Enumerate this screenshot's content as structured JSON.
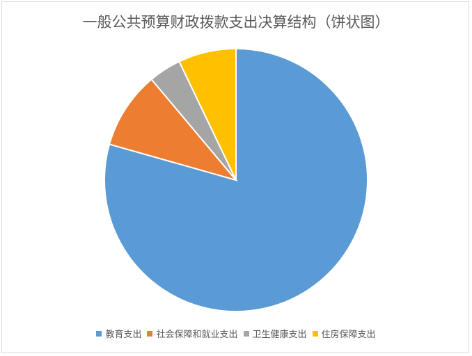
{
  "chart_data": {
    "type": "pie",
    "title": "一般公共预算财政拨款支出决算结构（饼状图）",
    "categories": [
      "教育支出",
      "社会保障和就业支出",
      "卫生健康支出",
      "住房保障支出"
    ],
    "values": [
      79.4,
      9.5,
      4.0,
      7.1
    ],
    "unit": "%",
    "colors": [
      "#5b9bd5",
      "#ed7d31",
      "#a5a5a5",
      "#ffc000"
    ],
    "start": "top",
    "direction": "clockwise",
    "legend_position": "bottom"
  }
}
